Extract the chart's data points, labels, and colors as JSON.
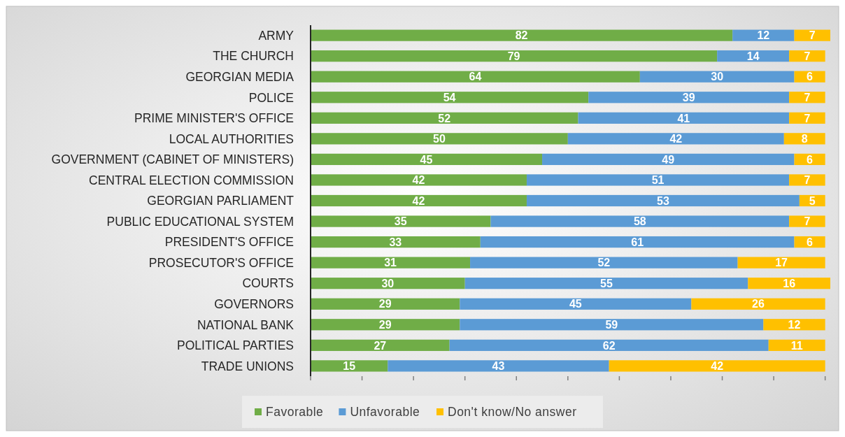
{
  "chart_data": {
    "type": "bar",
    "orientation": "horizontal",
    "stacked": true,
    "data_labels": true,
    "legend": "bottom",
    "tick_labels": "y",
    "grid": false,
    "categories": [
      "ARMY",
      "THE CHURCH",
      "GEORGIAN MEDIA",
      "POLICE",
      "PRIME MINISTER'S OFFICE",
      "LOCAL AUTHORITIES",
      "GOVERNMENT (CABINET OF MINISTERS)",
      "CENTRAL ELECTION COMMISSION",
      "GEORGIAN PARLIAMENT",
      "PUBLIC EDUCATIONAL SYSTEM",
      "PRESIDENT'S OFFICE",
      "PROSECUTOR'S OFFICE",
      "COURTS",
      "GOVERNORS",
      "NATIONAL BANK",
      "POLITICAL PARTIES",
      "TRADE UNIONS"
    ],
    "xlim": [
      0,
      101
    ],
    "xticks": [
      {
        "value": 0,
        "label": null
      },
      {
        "value": 10,
        "label": null
      },
      {
        "value": 20,
        "label": null
      },
      {
        "value": 30,
        "label": null
      },
      {
        "value": 40,
        "label": null
      },
      {
        "value": 50,
        "label": null
      },
      {
        "value": 60,
        "label": null
      },
      {
        "value": 70,
        "label": null
      },
      {
        "value": 80,
        "label": null
      },
      {
        "value": 90,
        "label": null
      },
      {
        "value": 100,
        "label": null
      }
    ],
    "series": [
      {
        "name": "Favorable",
        "color": "#70ad47",
        "values": [
          82,
          79,
          64,
          54,
          52,
          50,
          45,
          42,
          42,
          35,
          33,
          31,
          30,
          29,
          29,
          27,
          15
        ]
      },
      {
        "name": "Unfavorable",
        "color": "#5b9bd5",
        "values": [
          12,
          14,
          30,
          39,
          41,
          42,
          49,
          51,
          53,
          58,
          61,
          52,
          55,
          45,
          59,
          62,
          43
        ]
      },
      {
        "name": "Don't know/No answer",
        "color": "#ffc000",
        "values": [
          7,
          7,
          6,
          7,
          7,
          8,
          6,
          7,
          5,
          7,
          6,
          17,
          16,
          26,
          12,
          11,
          42
        ]
      }
    ]
  }
}
